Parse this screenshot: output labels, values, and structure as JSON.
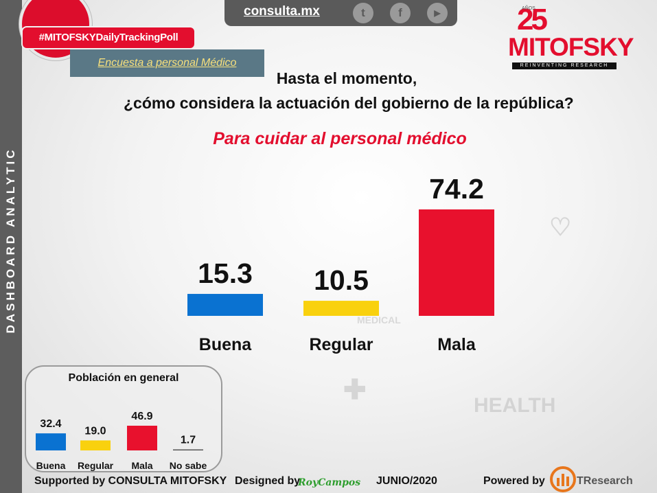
{
  "sidebar": {
    "vertical_text": "DASHBOARD ANALYTIC"
  },
  "header": {
    "site": "consulta.mx",
    "social_icons": [
      {
        "icon": "twitter-icon",
        "glyph": "t"
      },
      {
        "icon": "facebook-icon",
        "glyph": "f"
      },
      {
        "icon": "youtube-icon",
        "glyph": "▶"
      }
    ],
    "hashtag": "#MITOFSKYDailyTrackingPoll",
    "survey_badge": "Encuesta a personal Médico",
    "logo": {
      "number": "25",
      "years_label": "AÑOS",
      "brand": "MITOFSKY",
      "tagline": "REINVENTING RESEARCH"
    }
  },
  "question": {
    "line1": "Hasta el momento,",
    "line2": "¿cómo considera la actuación del gobierno de la república?"
  },
  "background_words": {
    "medical": "MEDICAL",
    "health": "HEALTH"
  },
  "colors": {
    "buena": "#0a72d1",
    "regular": "#f9d10e",
    "mala": "#e8112d",
    "no_sabe": "#555555",
    "accent_red": "#e30e2e"
  },
  "chart_data": [
    {
      "type": "bar",
      "title": "Para cuidar al personal médico",
      "categories": [
        "Buena",
        "Regular",
        "Mala"
      ],
      "values": [
        15.3,
        10.5,
        74.2
      ],
      "value_labels": [
        "15.3",
        "10.5",
        "74.2"
      ],
      "colors": [
        "#0a72d1",
        "#f9d10e",
        "#e8112d"
      ],
      "ylim": [
        0,
        100
      ],
      "grid": false,
      "legend": "none"
    },
    {
      "type": "bar",
      "title": "Población en general",
      "categories": [
        "Buena",
        "Regular",
        "Mala",
        "No sabe"
      ],
      "values": [
        32.4,
        19.0,
        46.9,
        1.7
      ],
      "value_labels": [
        "32.4",
        "19.0",
        "46.9",
        "1.7"
      ],
      "colors": [
        "#0a72d1",
        "#f9d10e",
        "#e8112d",
        "#555555"
      ],
      "ylim": [
        0,
        100
      ],
      "grid": false,
      "legend": "none"
    }
  ],
  "footer": {
    "supported": "Supported by  CONSULTA  MITOFSKY",
    "designed": "Designed by",
    "designer": "RoyCampos",
    "date": "JUNIO/2020",
    "powered": "Powered by",
    "brand": "TResearch"
  }
}
